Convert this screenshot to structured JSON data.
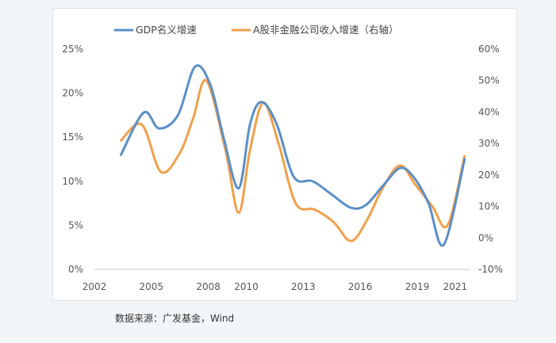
{
  "chart_data": {
    "type": "line",
    "title": "",
    "xlabel": "",
    "ylabel": "",
    "x_ticks": [
      "2002",
      "2005",
      "2008",
      "2010",
      "2013",
      "2016",
      "2019",
      "2021"
    ],
    "x_range": [
      2002,
      2021.8
    ],
    "y_left": {
      "range": [
        0,
        25
      ],
      "ticks": [
        "0%",
        "5%",
        "10%",
        "15%",
        "20%",
        "25%"
      ]
    },
    "y_right": {
      "range": [
        -10,
        60
      ],
      "ticks": [
        "-10%",
        "0%",
        "10%",
        "20%",
        "30%",
        "40%",
        "50%",
        "60%"
      ]
    },
    "legend_position": "top",
    "grid": false,
    "series": [
      {
        "name": "GDP名义增速",
        "axis": "left",
        "color": "#5b8fc7",
        "x": [
          2003.4,
          2004.6,
          2005.4,
          2006.4,
          2007.3,
          2008.1,
          2008.8,
          2009.6,
          2010.2,
          2010.8,
          2011.6,
          2012.5,
          2013.5,
          2014.5,
          2015.5,
          2016.3,
          2017.2,
          2018.1,
          2018.8,
          2019.6,
          2020.4,
          2021.5
        ],
        "values": [
          13.0,
          17.8,
          16.0,
          17.5,
          23.0,
          21.0,
          15.0,
          9.2,
          16.5,
          19.0,
          16.5,
          10.5,
          10.0,
          8.5,
          7.0,
          7.3,
          9.5,
          11.5,
          10.5,
          7.5,
          2.8,
          12.5
        ]
      },
      {
        "name": "A股非金融公司收入增速（右轴）",
        "axis": "right",
        "color": "#f0a04b",
        "x": [
          2003.4,
          2004.5,
          2005.5,
          2006.5,
          2007.2,
          2007.9,
          2008.9,
          2009.6,
          2010.2,
          2010.9,
          2011.7,
          2012.6,
          2013.6,
          2014.6,
          2015.5,
          2016.3,
          2017.2,
          2018.1,
          2018.9,
          2019.8,
          2020.6,
          2021.5
        ],
        "values": [
          31.0,
          36.0,
          21.0,
          27.0,
          38.0,
          50.0,
          28.0,
          8.0,
          28.0,
          43.0,
          30.0,
          11.0,
          9.0,
          5.0,
          -1.0,
          5.0,
          16.0,
          23.0,
          17.0,
          10.0,
          4.0,
          26.0
        ]
      }
    ]
  },
  "source_text": "数据来源：广发基金，Wind"
}
